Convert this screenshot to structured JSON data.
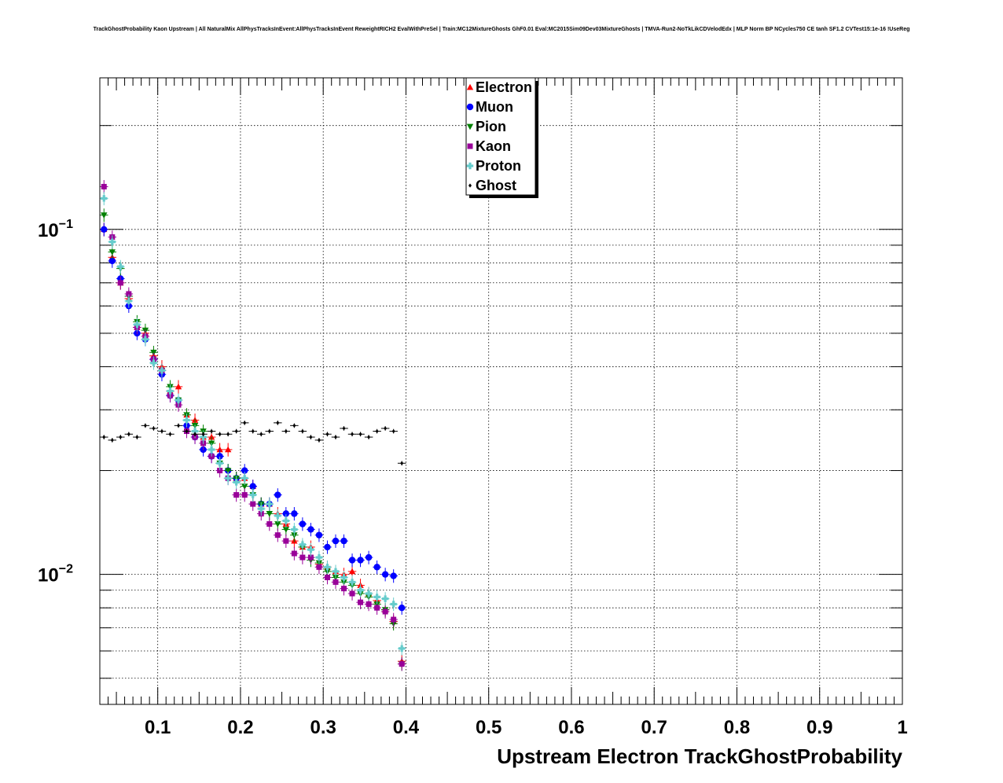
{
  "chart_data": {
    "type": "scatter",
    "title": "TrackGhostProbability Kaon Upstream | All NaturalMix AllPhysTracksInEvent:AllPhysTracksInEvent ReweightRICH2 EvalWithPreSel | Train:MC12MixtureGhosts GhF0.01 Eval:MC2015Sim09Dev03MixtureGhosts | TMVA-Run2-NoTkLikCDVelodEdx | MLP Norm BP NCycles750 CE tanh SF1.2 CVTest15:1e-16 !UseReg",
    "xlabel": "Upstream Electron TrackGhostProbability",
    "ylabel": "",
    "xlim": [
      0.03,
      1.0
    ],
    "ylim": [
      0.0042,
      0.275
    ],
    "yscale": "log",
    "grid": true,
    "legend_position": "top-center",
    "x_ticks": [
      {
        "value": 0.1,
        "label": "0.1"
      },
      {
        "value": 0.2,
        "label": "0.2"
      },
      {
        "value": 0.3,
        "label": "0.3"
      },
      {
        "value": 0.4,
        "label": "0.4"
      },
      {
        "value": 0.5,
        "label": "0.5"
      },
      {
        "value": 0.6,
        "label": "0.6"
      },
      {
        "value": 0.7,
        "label": "0.7"
      },
      {
        "value": 0.8,
        "label": "0.8"
      },
      {
        "value": 0.9,
        "label": "0.9"
      },
      {
        "value": 1.0,
        "label": "1"
      }
    ],
    "y_ticks": [
      {
        "value": 0.1,
        "base": "10",
        "exp": "−1"
      },
      {
        "value": 0.01,
        "base": "10",
        "exp": "−2"
      }
    ],
    "series": [
      {
        "name": "Electron",
        "color": "#ff0000",
        "marker": "triangle-up",
        "x": [
          0.035,
          0.045,
          0.055,
          0.065,
          0.075,
          0.085,
          0.095,
          0.105,
          0.115,
          0.125,
          0.135,
          0.145,
          0.155,
          0.165,
          0.175,
          0.185,
          0.195,
          0.205,
          0.215,
          0.225,
          0.235,
          0.245,
          0.255,
          0.265,
          0.275,
          0.285,
          0.295,
          0.305,
          0.315,
          0.325,
          0.335,
          0.345,
          0.355,
          0.365,
          0.375,
          0.385,
          0.395
        ],
        "y": [
          0.1,
          0.083,
          0.07,
          0.063,
          0.052,
          0.05,
          0.043,
          0.04,
          0.034,
          0.035,
          0.029,
          0.028,
          0.025,
          0.025,
          0.023,
          0.023,
          0.019,
          0.019,
          0.018,
          0.016,
          0.016,
          0.015,
          0.014,
          0.0125,
          0.012,
          0.012,
          0.0107,
          0.0105,
          0.0102,
          0.01,
          0.0102,
          0.0093,
          0.0088,
          0.0084,
          0.0079,
          0.0073,
          0.0056
        ]
      },
      {
        "name": "Muon",
        "color": "#0000ff",
        "marker": "circle",
        "x": [
          0.035,
          0.045,
          0.055,
          0.065,
          0.075,
          0.085,
          0.095,
          0.105,
          0.115,
          0.125,
          0.135,
          0.145,
          0.155,
          0.165,
          0.175,
          0.185,
          0.195,
          0.205,
          0.215,
          0.225,
          0.235,
          0.245,
          0.255,
          0.265,
          0.275,
          0.285,
          0.295,
          0.305,
          0.315,
          0.325,
          0.335,
          0.345,
          0.355,
          0.365,
          0.375,
          0.385,
          0.395
        ],
        "y": [
          0.1,
          0.081,
          0.072,
          0.06,
          0.05,
          0.048,
          0.042,
          0.038,
          0.033,
          0.032,
          0.027,
          0.025,
          0.023,
          0.022,
          0.022,
          0.02,
          0.019,
          0.02,
          0.018,
          0.016,
          0.016,
          0.017,
          0.015,
          0.015,
          0.014,
          0.0135,
          0.013,
          0.012,
          0.0125,
          0.0125,
          0.011,
          0.011,
          0.0112,
          0.0105,
          0.01,
          0.0099,
          0.008
        ]
      },
      {
        "name": "Pion",
        "color": "#008000",
        "marker": "triangle-down",
        "x": [
          0.035,
          0.045,
          0.055,
          0.065,
          0.075,
          0.085,
          0.095,
          0.105,
          0.115,
          0.125,
          0.135,
          0.145,
          0.155,
          0.165,
          0.175,
          0.185,
          0.195,
          0.205,
          0.215,
          0.225,
          0.235,
          0.245,
          0.255,
          0.265,
          0.275,
          0.285,
          0.295,
          0.305,
          0.315,
          0.325,
          0.335,
          0.345,
          0.355,
          0.365,
          0.375,
          0.385,
          0.395
        ],
        "y": [
          0.11,
          0.086,
          0.077,
          0.064,
          0.054,
          0.051,
          0.044,
          0.039,
          0.035,
          0.032,
          0.029,
          0.027,
          0.026,
          0.024,
          0.021,
          0.02,
          0.019,
          0.018,
          0.017,
          0.016,
          0.015,
          0.014,
          0.0135,
          0.013,
          0.012,
          0.011,
          0.0108,
          0.0102,
          0.0098,
          0.0095,
          0.0093,
          0.0088,
          0.0086,
          0.0082,
          0.0079,
          0.0072,
          0.0055
        ]
      },
      {
        "name": "Kaon",
        "color": "#990099",
        "marker": "square",
        "x": [
          0.035,
          0.045,
          0.055,
          0.065,
          0.075,
          0.085,
          0.095,
          0.105,
          0.115,
          0.125,
          0.135,
          0.145,
          0.155,
          0.165,
          0.175,
          0.185,
          0.195,
          0.205,
          0.215,
          0.225,
          0.235,
          0.245,
          0.255,
          0.265,
          0.275,
          0.285,
          0.295,
          0.305,
          0.315,
          0.325,
          0.335,
          0.345,
          0.355,
          0.365,
          0.375,
          0.385,
          0.395
        ],
        "y": [
          0.133,
          0.095,
          0.07,
          0.065,
          0.052,
          0.049,
          0.042,
          0.039,
          0.033,
          0.031,
          0.026,
          0.025,
          0.024,
          0.022,
          0.02,
          0.019,
          0.017,
          0.017,
          0.016,
          0.015,
          0.014,
          0.013,
          0.0125,
          0.0115,
          0.0112,
          0.0112,
          0.0105,
          0.0098,
          0.0095,
          0.0091,
          0.0088,
          0.0083,
          0.0082,
          0.008,
          0.0078,
          0.0074,
          0.0055
        ]
      },
      {
        "name": "Proton",
        "color": "#66cccc",
        "marker": "cross",
        "x": [
          0.035,
          0.045,
          0.055,
          0.065,
          0.075,
          0.085,
          0.095,
          0.105,
          0.115,
          0.125,
          0.135,
          0.145,
          0.155,
          0.165,
          0.175,
          0.185,
          0.195,
          0.205,
          0.215,
          0.225,
          0.235,
          0.245,
          0.255,
          0.265,
          0.275,
          0.285,
          0.295,
          0.305,
          0.315,
          0.325,
          0.335,
          0.345,
          0.355,
          0.365,
          0.375,
          0.385,
          0.395
        ],
        "y": [
          0.123,
          0.092,
          0.078,
          0.062,
          0.053,
          0.048,
          0.041,
          0.039,
          0.034,
          0.032,
          0.028,
          0.026,
          0.025,
          0.023,
          0.021,
          0.019,
          0.0185,
          0.019,
          0.017,
          0.0155,
          0.016,
          0.0148,
          0.0143,
          0.0135,
          0.0122,
          0.0118,
          0.0112,
          0.0105,
          0.0102,
          0.0098,
          0.0095,
          0.009,
          0.0088,
          0.0086,
          0.0085,
          0.0082,
          0.0061
        ]
      },
      {
        "name": "Ghost",
        "color": "#000000",
        "marker": "diamond",
        "x": [
          0.035,
          0.045,
          0.055,
          0.065,
          0.075,
          0.085,
          0.095,
          0.105,
          0.115,
          0.125,
          0.135,
          0.145,
          0.155,
          0.165,
          0.175,
          0.185,
          0.195,
          0.205,
          0.215,
          0.225,
          0.235,
          0.245,
          0.255,
          0.265,
          0.275,
          0.285,
          0.295,
          0.305,
          0.315,
          0.325,
          0.335,
          0.345,
          0.355,
          0.365,
          0.375,
          0.385,
          0.395
        ],
        "y": [
          0.025,
          0.0245,
          0.025,
          0.0255,
          0.025,
          0.027,
          0.0265,
          0.026,
          0.0255,
          0.027,
          0.026,
          0.0255,
          0.0255,
          0.026,
          0.0255,
          0.0255,
          0.026,
          0.0275,
          0.026,
          0.0255,
          0.026,
          0.0275,
          0.026,
          0.027,
          0.026,
          0.025,
          0.0245,
          0.0255,
          0.025,
          0.0265,
          0.0255,
          0.0255,
          0.025,
          0.026,
          0.0265,
          0.026,
          0.021
        ]
      }
    ]
  }
}
